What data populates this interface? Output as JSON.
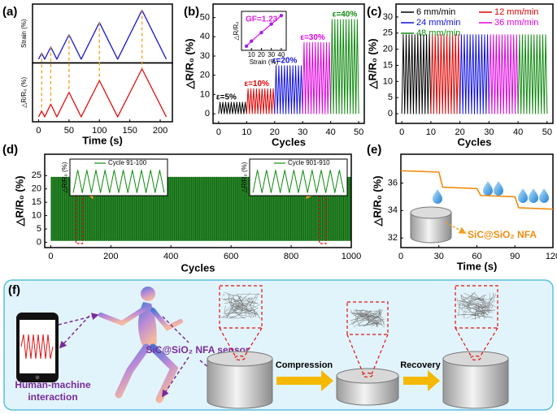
{
  "chart_data": [
    {
      "type": "line",
      "label": "(a)",
      "xlabel": "Time (s)",
      "xlim": [
        -10,
        220
      ],
      "xticks": [
        0,
        50,
        100,
        150,
        200
      ],
      "x": [
        0,
        5,
        10,
        20,
        30,
        50,
        70,
        100,
        130,
        170,
        210
      ],
      "guide_color": "#f0a020",
      "series": [
        {
          "name": "Strain (%)",
          "color": "#1a1ad0",
          "ylim": [
            -3,
            45
          ],
          "values": [
            0,
            5,
            0,
            10,
            0,
            20,
            0,
            30,
            0,
            40,
            0
          ]
        },
        {
          "name": "△R/R₀ (%)",
          "color": "#e01010",
          "ylim": [
            -5,
            55
          ],
          "values": [
            0,
            6,
            0,
            13,
            0,
            25,
            0,
            37,
            0,
            49,
            0
          ]
        }
      ]
    },
    {
      "type": "segments",
      "label": "(b)",
      "xlabel": "Cycles",
      "ylabel": "△R/R₀ (%)",
      "xlim": [
        -2,
        52
      ],
      "ylim": [
        -5,
        57
      ],
      "xticks": [
        0,
        10,
        20,
        30,
        40,
        50
      ],
      "yticks": [
        0,
        10,
        20,
        30,
        40,
        50
      ],
      "series": [
        {
          "label": "ε=5%",
          "color": "#000000",
          "x": [
            0,
            0.5,
            1,
            1.5,
            2,
            2.5,
            3,
            3.5,
            4,
            4.5,
            5,
            5.5,
            6,
            6.5,
            7,
            7.5,
            8,
            8.5,
            9,
            9.5,
            10
          ],
          "values": [
            0,
            6,
            0,
            6,
            0,
            6,
            0,
            6,
            0,
            6,
            0,
            6,
            0,
            6,
            0,
            6,
            0,
            6,
            0,
            6,
            0
          ]
        },
        {
          "label": "ε=10%",
          "color": "#e00000",
          "x": [
            10,
            10.5,
            11,
            11.5,
            12,
            12.5,
            13,
            13.5,
            14,
            14.5,
            15,
            15.5,
            16,
            16.5,
            17,
            17.5,
            18,
            18.5,
            19,
            19.5,
            20
          ],
          "values": [
            0,
            13,
            0,
            13,
            0,
            13,
            0,
            13,
            0,
            13,
            0,
            13,
            0,
            13,
            0,
            13,
            0,
            13,
            0,
            13,
            0
          ]
        },
        {
          "label": "ε=20%",
          "color": "#1010e0",
          "x": [
            20,
            20.5,
            21,
            21.5,
            22,
            22.5,
            23,
            23.5,
            24,
            24.5,
            25,
            25.5,
            26,
            26.5,
            27,
            27.5,
            28,
            28.5,
            29,
            29.5,
            30
          ],
          "values": [
            0,
            25,
            0,
            25,
            0,
            25,
            0,
            25,
            0,
            25,
            0,
            25,
            0,
            25,
            0,
            25,
            0,
            25,
            0,
            25,
            0
          ]
        },
        {
          "label": "ε=30%",
          "color": "#e000e0",
          "x": [
            30,
            30.5,
            31,
            31.5,
            32,
            32.5,
            33,
            33.5,
            34,
            34.5,
            35,
            35.5,
            36,
            36.5,
            37,
            37.5,
            38,
            38.5,
            39,
            39.5,
            40
          ],
          "values": [
            0,
            37,
            0,
            37,
            0,
            37,
            0,
            37,
            0,
            37,
            0,
            37,
            0,
            37,
            0,
            37,
            0,
            37,
            0,
            37,
            0
          ]
        },
        {
          "label": "ε=40%",
          "color": "#108a10",
          "x": [
            40,
            40.5,
            41,
            41.5,
            42,
            42.5,
            43,
            43.5,
            44,
            44.5,
            45,
            45.5,
            46,
            46.5,
            47,
            47.5,
            48,
            48.5,
            49,
            49.5,
            50
          ],
          "values": [
            0,
            49,
            0,
            49,
            0,
            49,
            0,
            49,
            0,
            49,
            0,
            49,
            0,
            49,
            0,
            49,
            0,
            49,
            0,
            49,
            0
          ]
        }
      ],
      "inset": {
        "type": "line",
        "annotation": "GF=1.23",
        "xlabel": "Strain (%)",
        "ylabel": "△R/R₀",
        "xlim": [
          0,
          45
        ],
        "ylim": [
          0,
          55
        ],
        "xticks": [
          10,
          20,
          30,
          40
        ],
        "x": [
          5,
          10,
          20,
          30,
          40
        ],
        "values": [
          6,
          13,
          25,
          37,
          49
        ],
        "color": "#e020e0",
        "marker_color": "#a020f0"
      }
    },
    {
      "type": "segments",
      "label": "(c)",
      "xlabel": "Cycles",
      "ylabel": "△R/R₀ (%)",
      "xlim": [
        -2,
        52
      ],
      "ylim": [
        -3,
        34
      ],
      "xticks": [
        0,
        10,
        20,
        30,
        40,
        50
      ],
      "yticks": [
        0,
        5,
        10,
        15,
        20,
        25,
        30
      ],
      "series": [
        {
          "name": "6 mm/min",
          "color": "#000000",
          "x": [
            0,
            0.5,
            1,
            1.5,
            2,
            2.5,
            3,
            3.5,
            4,
            4.5,
            5,
            5.5,
            6,
            6.5,
            7,
            7.5,
            8,
            8.5,
            9,
            9.5,
            10
          ],
          "values": [
            0,
            24.5,
            0,
            24.5,
            0,
            24.5,
            0,
            24.5,
            0,
            24.5,
            0,
            24.5,
            0,
            24.5,
            0,
            24.5,
            0,
            24.5,
            0,
            24.5,
            0
          ]
        },
        {
          "name": "12 mm/min",
          "color": "#e00000",
          "x": [
            10,
            10.5,
            11,
            11.5,
            12,
            12.5,
            13,
            13.5,
            14,
            14.5,
            15,
            15.5,
            16,
            16.5,
            17,
            17.5,
            18,
            18.5,
            19,
            19.5,
            20
          ],
          "values": [
            0,
            24.5,
            0,
            24.5,
            0,
            24.5,
            0,
            24.5,
            0,
            24.5,
            0,
            24.5,
            0,
            24.5,
            0,
            24.5,
            0,
            24.5,
            0,
            24.5,
            0
          ]
        },
        {
          "name": "24 mm/min",
          "color": "#1010e0",
          "x": [
            20,
            20.5,
            21,
            21.5,
            22,
            22.5,
            23,
            23.5,
            24,
            24.5,
            25,
            25.5,
            26,
            26.5,
            27,
            27.5,
            28,
            28.5,
            29,
            29.5,
            30
          ],
          "values": [
            0,
            24.5,
            0,
            24.5,
            0,
            24.5,
            0,
            24.5,
            0,
            24.5,
            0,
            24.5,
            0,
            24.5,
            0,
            24.5,
            0,
            24.5,
            0,
            24.5,
            0
          ]
        },
        {
          "name": "36 mm/min",
          "color": "#e000e0",
          "x": [
            30,
            30.5,
            31,
            31.5,
            32,
            32.5,
            33,
            33.5,
            34,
            34.5,
            35,
            35.5,
            36,
            36.5,
            37,
            37.5,
            38,
            38.5,
            39,
            39.5,
            40
          ],
          "values": [
            0,
            24.5,
            0,
            24.5,
            0,
            24.5,
            0,
            24.5,
            0,
            24.5,
            0,
            24.5,
            0,
            24.5,
            0,
            24.5,
            0,
            24.5,
            0,
            24.5,
            0
          ]
        },
        {
          "name": "48 mm/min",
          "color": "#108a10",
          "x": [
            40,
            40.5,
            41,
            41.5,
            42,
            42.5,
            43,
            43.5,
            44,
            44.5,
            45,
            45.5,
            46,
            46.5,
            47,
            47.5,
            48,
            48.5,
            49,
            49.5,
            50
          ],
          "values": [
            0,
            24.5,
            0,
            24.5,
            0,
            24.5,
            0,
            24.5,
            0,
            24.5,
            0,
            24.5,
            0,
            24.5,
            0,
            24.5,
            0,
            24.5,
            0,
            24.5,
            0
          ]
        }
      ]
    },
    {
      "type": "band",
      "label": "(d)",
      "xlabel": "Cycles",
      "ylabel": "△R/R₀ (%)",
      "xlim": [
        -20,
        1000
      ],
      "ylim": [
        -2,
        33
      ],
      "xticks": [
        0,
        200,
        400,
        600,
        800,
        1000
      ],
      "yticks": [
        0,
        5,
        10,
        15,
        20,
        25
      ],
      "color": "#2e8b2e",
      "x": [
        0,
        1000
      ],
      "upper": [
        24.5,
        24.5
      ],
      "lower": [
        0.5,
        0.5
      ],
      "insets": [
        {
          "name": "Cycle 91-100",
          "ylabel": "△R/R₀ (%)",
          "xlim": [
            90,
            100
          ],
          "ylim": [
            -2,
            27
          ],
          "color": "#108a10",
          "x": [
            90,
            90.5,
            91,
            91.5,
            92,
            92.5,
            93,
            93.5,
            94,
            94.5,
            95,
            95.5,
            96,
            96.5,
            97,
            97.5,
            98,
            98.5,
            99,
            99.5,
            100
          ],
          "values": [
            1,
            24,
            1,
            24,
            1,
            24,
            1,
            24,
            1,
            24,
            1,
            24,
            1,
            24,
            1,
            24,
            1,
            24,
            1,
            24,
            1
          ]
        },
        {
          "name": "Cycle 901-910",
          "ylabel": "△R/R₀ (%)",
          "xlim": [
            900,
            910
          ],
          "ylim": [
            -2,
            27
          ],
          "color": "#108a10",
          "x": [
            900,
            900.5,
            901,
            901.5,
            902,
            902.5,
            903,
            903.5,
            904,
            904.5,
            905,
            905.5,
            906,
            906.5,
            907,
            907.5,
            908,
            908.5,
            909,
            909.5,
            910
          ],
          "values": [
            1,
            24,
            1,
            24,
            1,
            24,
            1,
            24,
            1,
            24,
            1,
            24,
            1,
            24,
            1,
            24,
            1,
            24,
            1,
            24,
            1
          ]
        }
      ]
    },
    {
      "type": "line",
      "label": "(e)",
      "xlabel": "Time (s)",
      "ylabel": "△R/R₀ (%)",
      "xlim": [
        0,
        120
      ],
      "ylim": [
        31.3,
        38.1
      ],
      "xticks": [
        0,
        30,
        60,
        90,
        120
      ],
      "yticks": [
        32,
        34,
        36
      ],
      "color": "#f08c10",
      "annotation": "SiC@SiO₂ NFA",
      "x": [
        0,
        30,
        33,
        60,
        63,
        90,
        93,
        120
      ],
      "values": [
        36.9,
        36.8,
        35.7,
        35.6,
        35.1,
        35.0,
        34.2,
        34.1
      ]
    }
  ],
  "diagram": {
    "label": "(f)",
    "interaction": [
      "Human-machine",
      "interaction"
    ],
    "sensor": "SiC@SiO₂ NFA sensor",
    "compression": "Compression",
    "recovery": "Recovery"
  }
}
